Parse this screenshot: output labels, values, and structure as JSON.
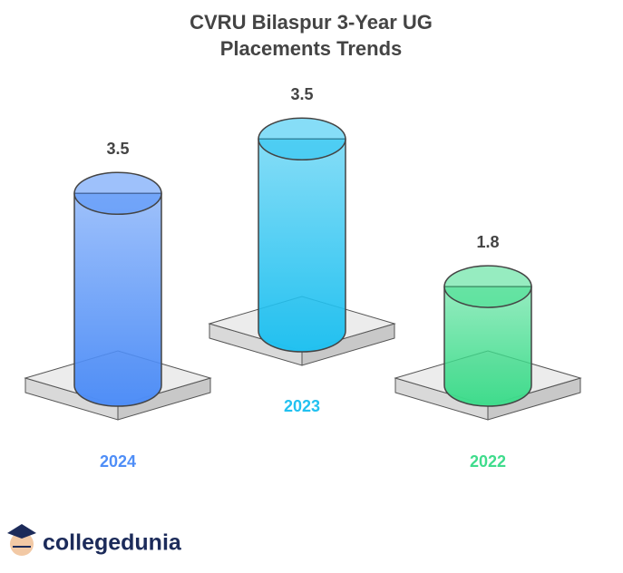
{
  "chart_data": {
    "type": "cylinder",
    "title": "CVRU Bilaspur 3-Year UG Placements Trends",
    "categories": [
      "2024",
      "2023",
      "2022"
    ],
    "values": [
      3.5,
      3.5,
      1.8
    ],
    "colors": [
      "#4f8ef7",
      "#22c1f0",
      "#3fdc8c"
    ]
  },
  "brand": "collegedunia"
}
